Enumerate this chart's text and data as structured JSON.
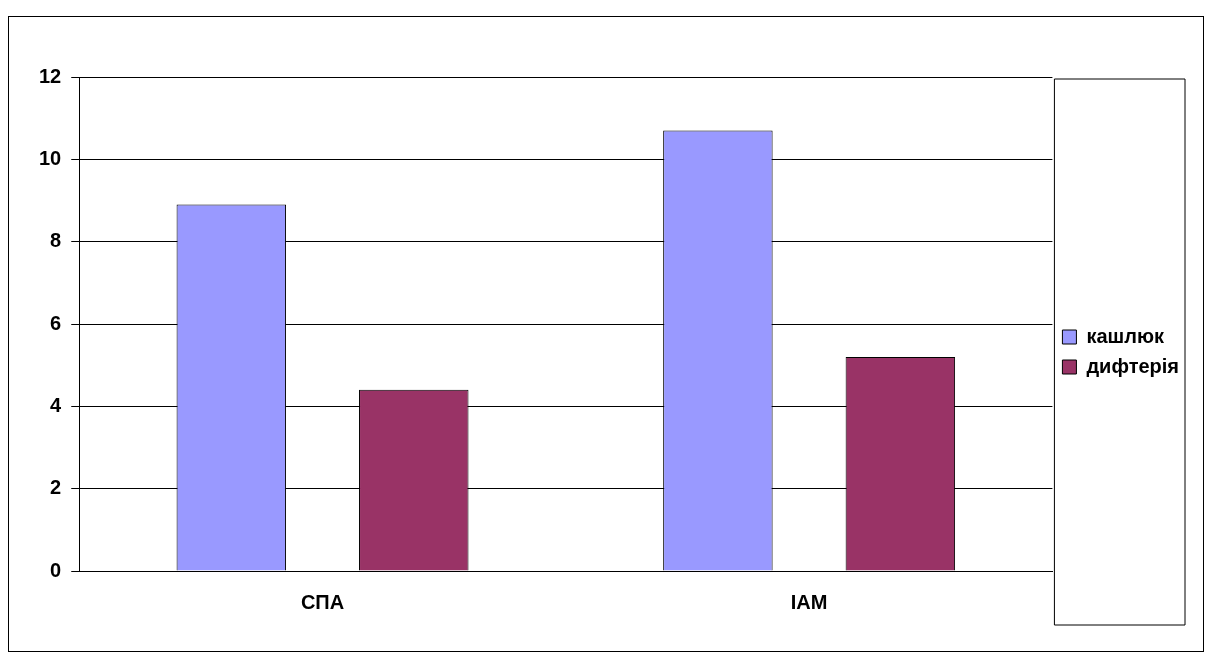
{
  "chart_data": {
    "type": "bar",
    "categories": [
      "СПА",
      "ІАМ"
    ],
    "series": [
      {
        "name": "кашлюк",
        "color": "#9999ff",
        "values": [
          8.9,
          10.7
        ]
      },
      {
        "name": "дифтерія",
        "color": "#993366",
        "values": [
          4.4,
          5.2
        ]
      }
    ],
    "ylim": [
      0,
      12
    ],
    "yticks": [
      0,
      2,
      4,
      6,
      8,
      10,
      12
    ],
    "grid": "y",
    "legend": "right"
  }
}
